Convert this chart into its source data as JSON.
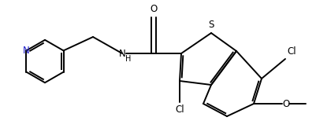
{
  "background_color": "#ffffff",
  "line_color": "#000000",
  "N_color": "#2222cc",
  "bond_width": 1.4,
  "figsize": [
    4.02,
    1.54
  ],
  "dpi": 100,
  "xlim": [
    0,
    10.05
  ],
  "ylim": [
    0,
    3.85
  ]
}
